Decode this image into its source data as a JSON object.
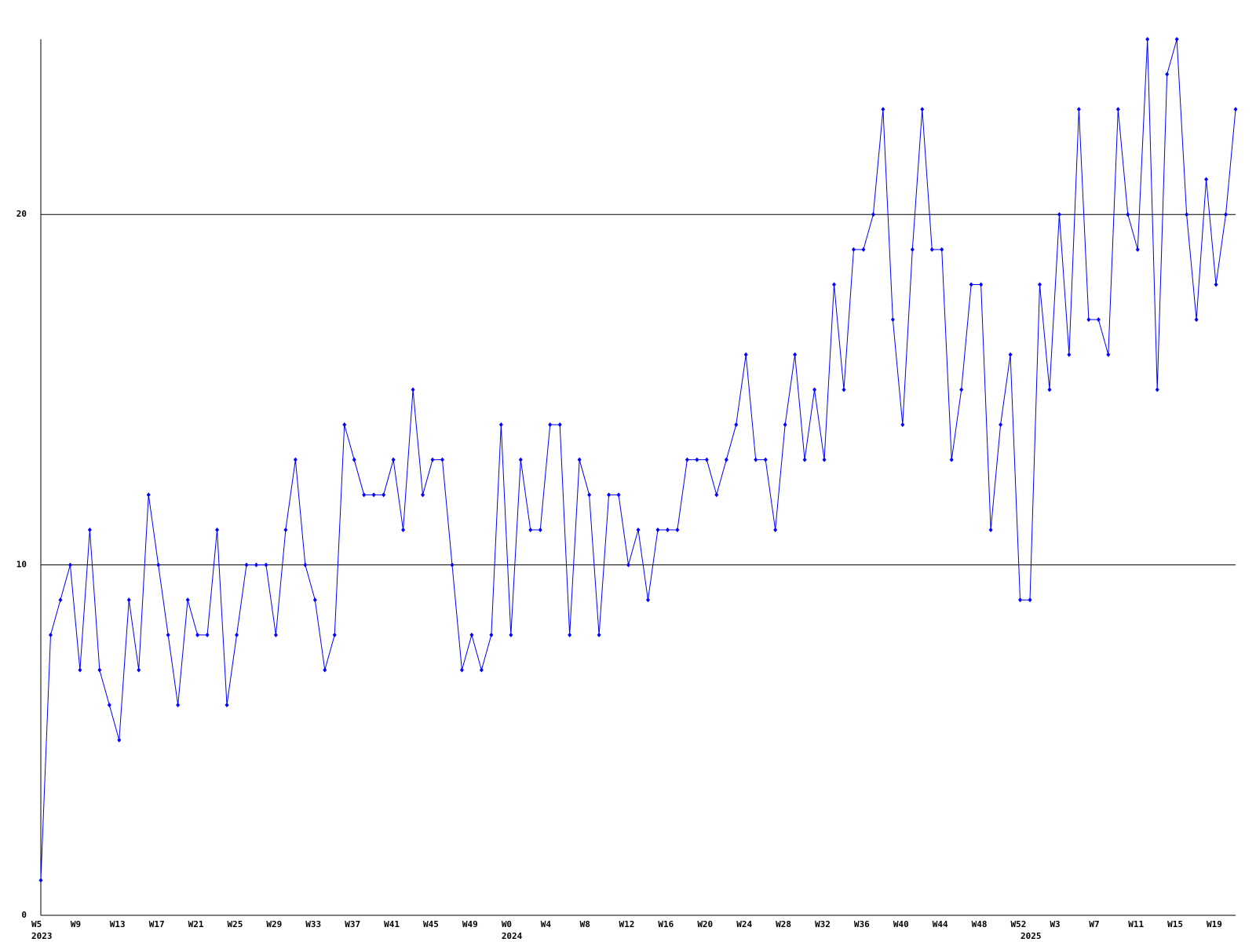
{
  "chart_data": {
    "type": "line",
    "categories": [
      "W5",
      null,
      null,
      null,
      "W9",
      null,
      null,
      null,
      "W13",
      null,
      null,
      null,
      "W17",
      null,
      null,
      null,
      "W21",
      null,
      null,
      null,
      "W25",
      null,
      null,
      null,
      "W29",
      null,
      null,
      null,
      "W33",
      null,
      null,
      null,
      "W37",
      null,
      null,
      null,
      "W41",
      null,
      null,
      null,
      "W45",
      null,
      null,
      null,
      "W49",
      null,
      null,
      null,
      "W0",
      null,
      null,
      null,
      "W4",
      null,
      null,
      null,
      "W8",
      null,
      null,
      null,
      "W12",
      null,
      null,
      null,
      "W16",
      null,
      null,
      null,
      "W20",
      null,
      null,
      null,
      "W24",
      null,
      null,
      null,
      "W28",
      null,
      null,
      null,
      "W32",
      null,
      null,
      null,
      "W36",
      null,
      null,
      null,
      "W40",
      null,
      null,
      null,
      "W44",
      null,
      null,
      null,
      "W48",
      null,
      null,
      null,
      "W52",
      null,
      null,
      null,
      "W3",
      null,
      null,
      null,
      "W7",
      null,
      null,
      null,
      "W11",
      null,
      null,
      null,
      "W15",
      null,
      null,
      null,
      "W19",
      null,
      null
    ],
    "years": [
      "2023",
      null,
      null,
      null,
      null,
      null,
      null,
      null,
      null,
      null,
      null,
      null,
      null,
      null,
      null,
      null,
      null,
      null,
      null,
      null,
      null,
      null,
      null,
      null,
      null,
      null,
      null,
      null,
      null,
      null,
      null,
      null,
      null,
      null,
      null,
      null,
      null,
      null,
      null,
      null,
      null,
      null,
      null,
      null,
      null,
      null,
      null,
      null,
      "2024",
      null,
      null,
      null,
      null,
      null,
      null,
      null,
      null,
      null,
      null,
      null,
      null,
      null,
      null,
      null,
      null,
      null,
      null,
      null,
      null,
      null,
      null,
      null,
      null,
      null,
      null,
      null,
      null,
      null,
      null,
      null,
      null,
      null,
      null,
      null,
      null,
      null,
      null,
      null,
      null,
      null,
      null,
      null,
      null,
      null,
      null,
      null,
      null,
      null,
      null,
      null,
      null,
      "2025",
      null,
      null,
      null,
      null,
      null,
      null,
      null,
      null,
      null,
      null,
      null,
      null,
      null,
      null,
      null,
      null,
      null,
      null,
      null,
      null,
      null
    ],
    "values": [
      1,
      8,
      9,
      10,
      7,
      11,
      7,
      6,
      5,
      9,
      7,
      12,
      10,
      8,
      6,
      9,
      8,
      8,
      11,
      6,
      8,
      10,
      10,
      10,
      8,
      11,
      13,
      10,
      9,
      7,
      8,
      14,
      13,
      12,
      12,
      12,
      13,
      11,
      15,
      12,
      13,
      13,
      10,
      7,
      8,
      7,
      8,
      14,
      8,
      13,
      11,
      11,
      14,
      14,
      8,
      13,
      12,
      8,
      12,
      12,
      10,
      11,
      9,
      11,
      11,
      11,
      13,
      13,
      13,
      12,
      13,
      14,
      16,
      13,
      13,
      11,
      14,
      16,
      13,
      15,
      13,
      18,
      15,
      19,
      19,
      20,
      23,
      17,
      14,
      19,
      23,
      19,
      19,
      13,
      15,
      18,
      18,
      11,
      14,
      16,
      9,
      9,
      18,
      15,
      20,
      16,
      23,
      17,
      17,
      16,
      23,
      20,
      19,
      25,
      15,
      24,
      25,
      20,
      17,
      21,
      18,
      20,
      23
    ],
    "color": "#0000ff",
    "ylim": [
      0,
      25
    ],
    "yticks": [
      0,
      10,
      20
    ],
    "grid": true
  }
}
